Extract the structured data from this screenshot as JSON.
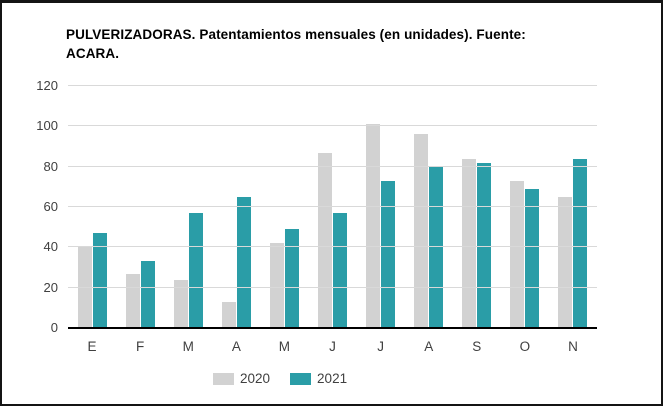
{
  "chart_data": {
    "type": "bar",
    "title": "PULVERIZADORAS. Patentamientos mensuales (en unidades). Fuente: ACARA.",
    "categories": [
      "E",
      "F",
      "M",
      "A",
      "M",
      "J",
      "J",
      "A",
      "S",
      "O",
      "N"
    ],
    "series": [
      {
        "name": "2020",
        "color": "#d2d2d2",
        "values": [
          40,
          27,
          24,
          13,
          42,
          87,
          101,
          96,
          84,
          73,
          65
        ]
      },
      {
        "name": "2021",
        "color": "#2a9da7",
        "values": [
          47,
          33,
          57,
          65,
          49,
          57,
          73,
          80,
          82,
          69,
          84
        ]
      }
    ],
    "xlabel": "",
    "ylabel": "",
    "ylim": [
      0,
      120
    ],
    "yticks": [
      0,
      20,
      40,
      60,
      80,
      100,
      120
    ],
    "grid": "horizontal",
    "gridline_color": "#d9d9d9",
    "axis_line_color": "#000000",
    "tick_label_color": "#404040",
    "legend_position": "bottom-center",
    "plot_background": "#ffffff"
  }
}
